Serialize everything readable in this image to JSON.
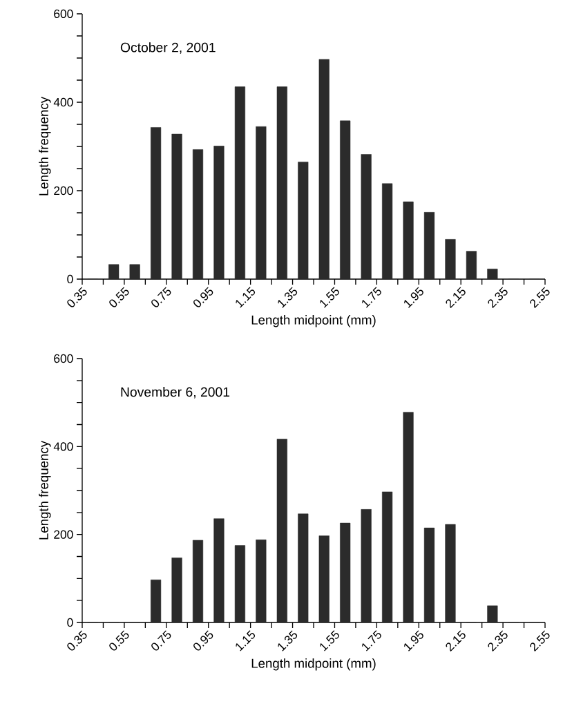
{
  "chart_data": [
    {
      "type": "histogram",
      "title": "October 2, 2001",
      "xlabel": "Length midpoint (mm)",
      "ylabel": "Length frequency",
      "color": "#2b2b2b",
      "bins": [
        0.35,
        0.45,
        0.55,
        0.65,
        0.75,
        0.85,
        0.95,
        1.05,
        1.15,
        1.25,
        1.35,
        1.45,
        1.55,
        1.65,
        1.75,
        1.85,
        1.95,
        2.05,
        2.15,
        2.25,
        2.35,
        2.45,
        2.55
      ],
      "values": [
        0,
        33,
        33,
        343,
        328,
        293,
        301,
        435,
        345,
        435,
        265,
        497,
        358,
        282,
        216,
        175,
        151,
        90,
        63,
        23,
        0,
        0
      ],
      "xlim": [
        0.35,
        2.55
      ],
      "ylim": [
        0,
        600
      ],
      "xticks": [
        0.35,
        {
          "value": 0.45,
          "label": null
        },
        0.55,
        {
          "value": 0.65,
          "label": null
        },
        0.75,
        {
          "value": 0.85,
          "label": null
        },
        0.95,
        {
          "value": 1.05,
          "label": null
        },
        1.15,
        {
          "value": 1.25,
          "label": null
        },
        1.35,
        {
          "value": 1.45,
          "label": null
        },
        1.55,
        {
          "value": 1.65,
          "label": null
        },
        1.75,
        {
          "value": 1.85,
          "label": null
        },
        1.95,
        {
          "value": 2.05,
          "label": null
        },
        2.15,
        {
          "value": 2.25,
          "label": null
        },
        2.35,
        {
          "value": 2.45,
          "label": null
        },
        2.55
      ],
      "yticks": [
        0,
        {
          "value": 50,
          "label": null
        },
        {
          "value": 100,
          "label": null
        },
        {
          "value": 150,
          "label": null
        },
        200,
        {
          "value": 250,
          "label": null
        },
        {
          "value": 300,
          "label": null
        },
        {
          "value": 350,
          "label": null
        },
        400,
        {
          "value": 450,
          "label": null
        },
        {
          "value": 500,
          "label": null
        },
        {
          "value": 550,
          "label": null
        },
        600
      ]
    },
    {
      "type": "histogram",
      "title": "November 6, 2001",
      "xlabel": "Length midpoint (mm)",
      "ylabel": "Length frequency",
      "color": "#2b2b2b",
      "bins": [
        0.35,
        0.45,
        0.55,
        0.65,
        0.75,
        0.85,
        0.95,
        1.05,
        1.15,
        1.25,
        1.35,
        1.45,
        1.55,
        1.65,
        1.75,
        1.85,
        1.95,
        2.05,
        2.15,
        2.25,
        2.35,
        2.45,
        2.55
      ],
      "values": [
        0,
        0,
        0,
        97,
        147,
        187,
        236,
        175,
        188,
        417,
        247,
        197,
        226,
        257,
        297,
        478,
        215,
        223,
        0,
        38,
        0,
        0
      ],
      "xlim": [
        0.35,
        2.55
      ],
      "ylim": [
        0,
        600
      ],
      "xticks": [
        0.35,
        {
          "value": 0.45,
          "label": null
        },
        0.55,
        {
          "value": 0.65,
          "label": null
        },
        0.75,
        {
          "value": 0.85,
          "label": null
        },
        0.95,
        {
          "value": 1.05,
          "label": null
        },
        1.15,
        {
          "value": 1.25,
          "label": null
        },
        1.35,
        {
          "value": 1.45,
          "label": null
        },
        1.55,
        {
          "value": 1.65,
          "label": null
        },
        1.75,
        {
          "value": 1.85,
          "label": null
        },
        1.95,
        {
          "value": 2.05,
          "label": null
        },
        2.15,
        {
          "value": 2.25,
          "label": null
        },
        2.35,
        {
          "value": 2.45,
          "label": null
        },
        2.55
      ],
      "yticks": [
        0,
        {
          "value": 50,
          "label": null
        },
        {
          "value": 100,
          "label": null
        },
        {
          "value": 150,
          "label": null
        },
        200,
        {
          "value": 250,
          "label": null
        },
        {
          "value": 300,
          "label": null
        },
        {
          "value": 350,
          "label": null
        },
        400,
        {
          "value": 450,
          "label": null
        },
        {
          "value": 500,
          "label": null
        },
        {
          "value": 550,
          "label": null
        },
        600
      ]
    }
  ]
}
